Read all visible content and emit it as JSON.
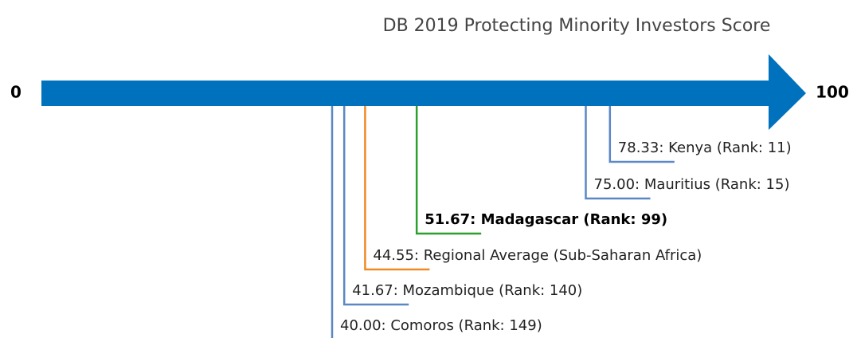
{
  "chart_data": {
    "type": "number-line",
    "title": "DB 2019 Protecting Minority Investors Score",
    "xlim": [
      0,
      100
    ],
    "xticks": [
      0,
      100
    ],
    "axis_color": "#0071bd",
    "values": [
      78.33,
      75.0,
      51.67,
      44.55,
      41.67,
      40.0
    ],
    "value_labels": [
      "78.33: Kenya (Rank: 11)",
      "75.00: Mauritius (Rank: 15)",
      "51.67: Madagascar (Rank: 99)",
      "44.55: Regional Average (Sub-Saharan Africa)",
      "41.67: Mozambique (Rank: 140)",
      "40.00: Comoros (Rank: 149)"
    ],
    "colors": [
      "#5b87c5",
      "#5b87c5",
      "#2ca02c",
      "#f08a24",
      "#5b87c5",
      "#5b87c5"
    ],
    "highlight": 2
  }
}
